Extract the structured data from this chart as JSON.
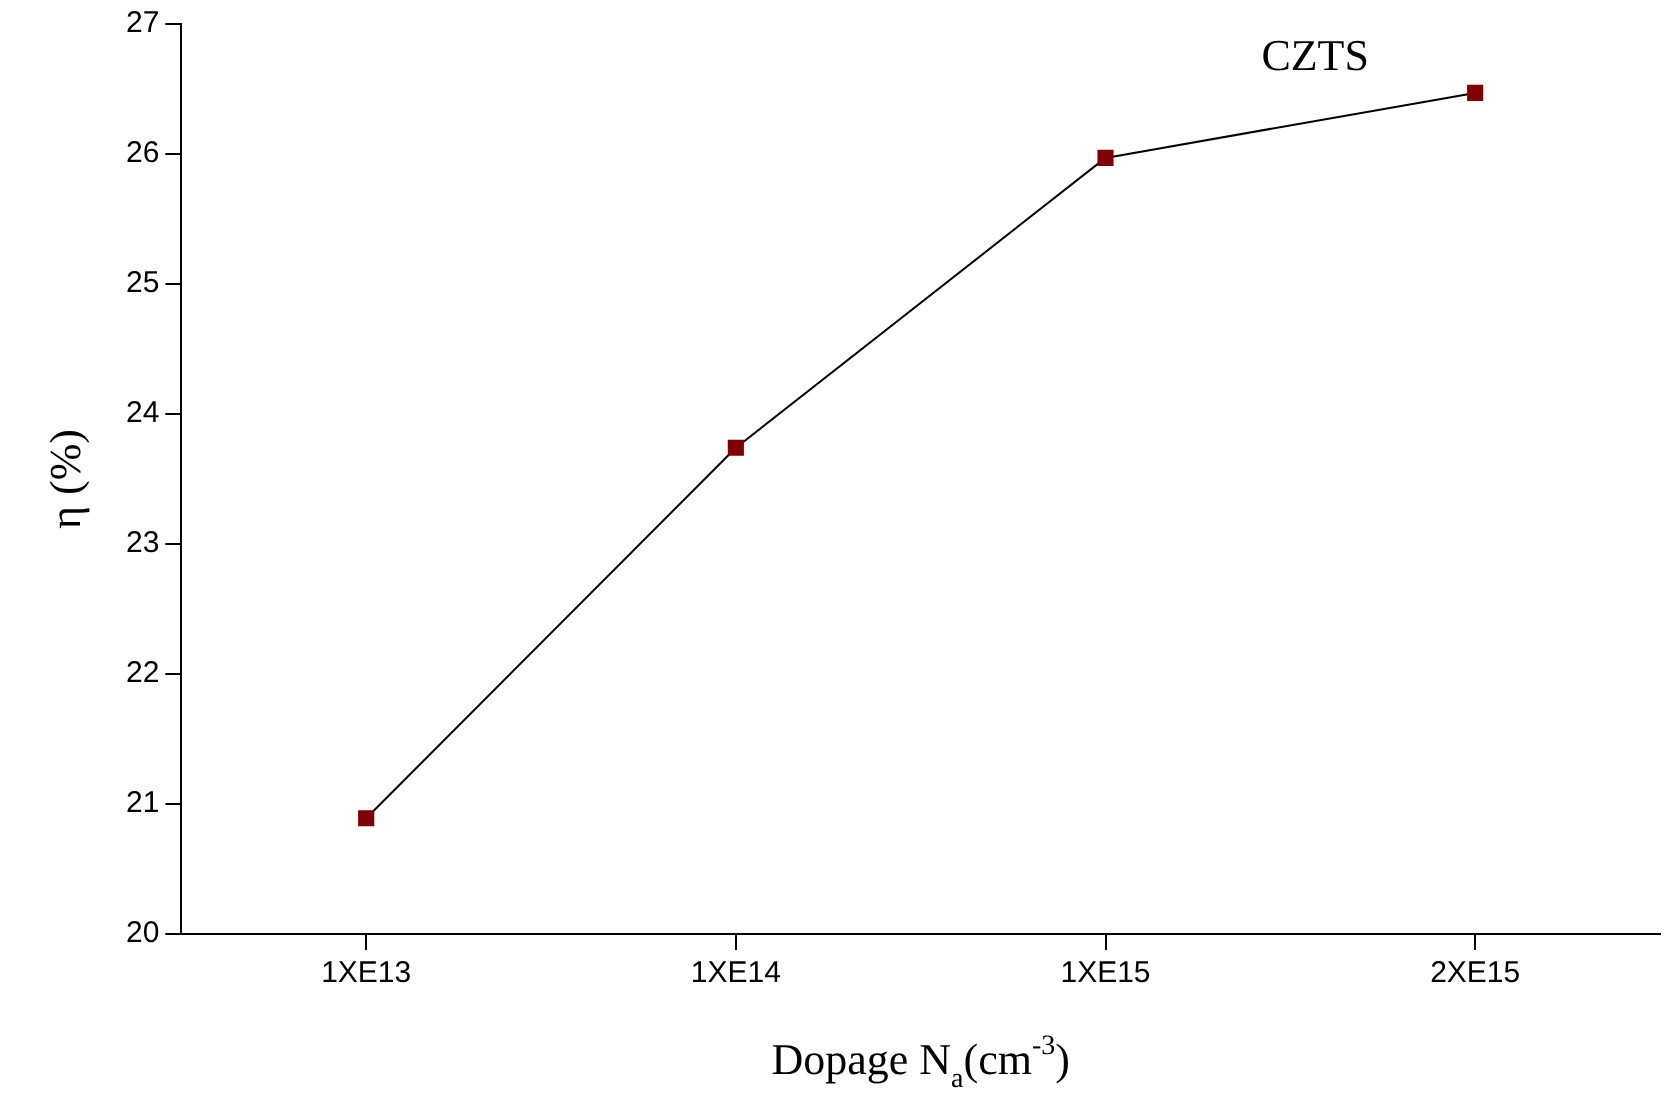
{
  "chart_data": {
    "type": "line",
    "xlabel": "Dopage N$_{a}$(cm$^{-3}$)",
    "ylabel": "η (%)",
    "categories": [
      "1XE13",
      "1XE14",
      "1XE15",
      "2XE15"
    ],
    "series": [
      {
        "name": "CZTS",
        "color": "#800000",
        "values": [
          20.89,
          23.74,
          25.97,
          26.47
        ]
      }
    ],
    "ylim": [
      20,
      27
    ],
    "yticks": [
      20,
      21,
      22,
      23,
      24,
      25,
      26,
      27
    ],
    "grid": false,
    "legend": false,
    "marker": "square",
    "line_style": "solid"
  }
}
